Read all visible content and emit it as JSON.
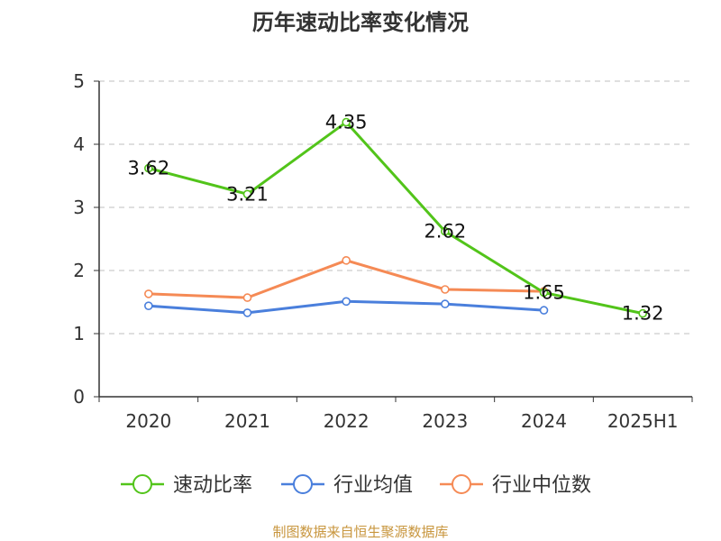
{
  "chart_data": {
    "type": "line",
    "title": "历年速动比率变化情况",
    "categories": [
      "2020",
      "2021",
      "2022",
      "2023",
      "2024",
      "2025H1"
    ],
    "yticks": [
      "0",
      "1",
      "2",
      "3",
      "4",
      "5"
    ],
    "ylim": [
      0,
      5
    ],
    "grid": true,
    "legend_position": "bottom",
    "series": [
      {
        "name": "速动比率",
        "color": "#52c41a",
        "values": [
          3.62,
          3.21,
          4.35,
          2.62,
          1.65,
          1.32
        ],
        "labels": [
          "3.62",
          "3.21",
          "4.35",
          "2.62",
          "1.65",
          "1.32"
        ]
      },
      {
        "name": "行业均值",
        "color": "#4a7fdc",
        "values": [
          1.44,
          1.33,
          1.51,
          1.47,
          1.37,
          null
        ]
      },
      {
        "name": "行业中位数",
        "color": "#f58a55",
        "values": [
          1.63,
          1.57,
          2.16,
          1.7,
          1.67,
          null
        ]
      }
    ],
    "source": "制图数据来自恒生聚源数据库",
    "source_color": "#c8963e"
  }
}
